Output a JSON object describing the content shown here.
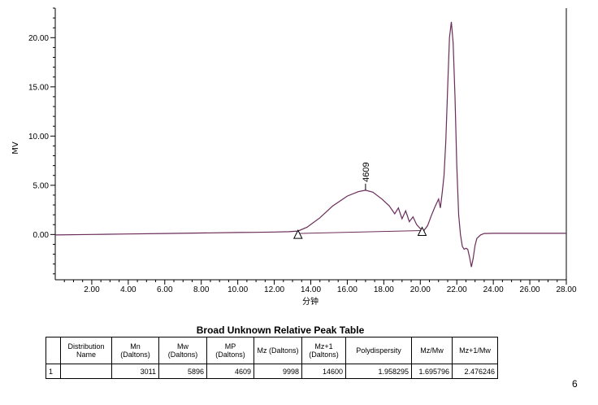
{
  "chart_data": {
    "type": "line",
    "xlabel": "分钟",
    "ylabel": "MV",
    "xlim": [
      0,
      28
    ],
    "ylim": [
      -4.6,
      23
    ],
    "x_ticks": [
      "2.00",
      "4.00",
      "6.00",
      "8.00",
      "10.00",
      "12.00",
      "14.00",
      "16.00",
      "18.00",
      "20.00",
      "22.00",
      "24.00",
      "26.00",
      "28.00"
    ],
    "y_ticks": [
      "0.00",
      "5.00",
      "10.00",
      "15.00",
      "20.00"
    ],
    "grid": false,
    "color": "#6b2c5a",
    "series": [
      {
        "x": [
          0,
          2,
          4,
          6,
          8,
          10,
          11,
          12,
          12.8,
          13.3,
          13.8,
          14.5,
          15.2,
          16,
          16.6,
          17,
          17.4,
          17.9,
          18.3,
          18.6,
          18.8,
          19.0,
          19.2,
          19.4,
          19.6,
          19.8,
          20.0,
          20.2,
          20.4,
          20.6,
          20.8,
          21.0,
          21.1,
          21.2,
          21.3,
          21.4,
          21.5,
          21.6,
          21.7,
          21.8,
          21.9,
          22.0,
          22.1,
          22.2,
          22.3,
          22.4,
          22.5,
          22.6,
          22.7,
          22.8,
          22.9,
          23.0,
          23.1,
          23.3,
          23.5,
          24,
          25,
          26,
          28
        ],
        "y": [
          -0.05,
          0.0,
          0.05,
          0.1,
          0.15,
          0.2,
          0.22,
          0.25,
          0.28,
          0.35,
          0.75,
          1.7,
          2.9,
          3.9,
          4.35,
          4.5,
          4.3,
          3.6,
          2.9,
          2.1,
          2.7,
          1.6,
          2.4,
          1.3,
          1.8,
          1.0,
          0.6,
          0.4,
          0.9,
          1.9,
          2.8,
          3.6,
          2.7,
          4.2,
          6.0,
          9.5,
          15.0,
          20.0,
          21.6,
          19.5,
          14.0,
          7.0,
          2.0,
          0.0,
          -1.2,
          -1.5,
          -1.4,
          -1.5,
          -2.3,
          -3.3,
          -2.4,
          -1.1,
          -0.4,
          -0.05,
          0.1,
          0.12,
          0.12,
          0.12,
          0.12
        ]
      }
    ],
    "baseline": {
      "x": [
        13.3,
        20.1
      ],
      "y": [
        0.1,
        0.4
      ]
    },
    "peak_markers_x": [
      13.3,
      20.1
    ],
    "annotations": [
      {
        "text": "4609",
        "x": 17.0,
        "y": 4.5
      }
    ]
  },
  "table": {
    "title": "Broad Unknown Relative Peak Table",
    "headers": [
      "",
      "Distribution Name",
      "Mn (Daltons)",
      "Mw (Daltons)",
      "MP (Daltons)",
      "Mz (Daltons)",
      "Mz+1 (Daltons)",
      "Polydispersity",
      "Mz/Mw",
      "Mz+1/Mw"
    ],
    "rows": [
      [
        "1",
        "",
        "3011",
        "5896",
        "4609",
        "9998",
        "14600",
        "1.958295",
        "1.695796",
        "2.476246"
      ]
    ]
  },
  "page_number": "6"
}
